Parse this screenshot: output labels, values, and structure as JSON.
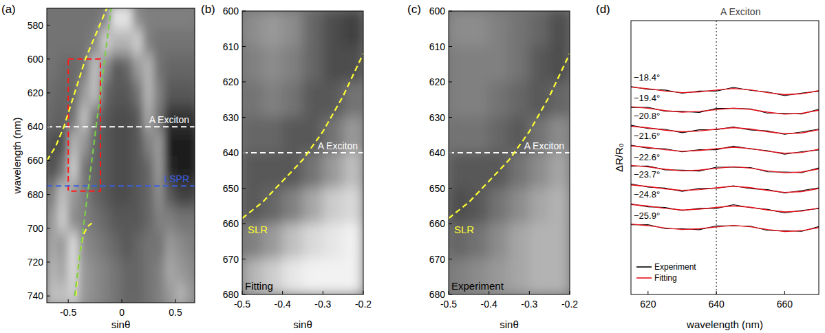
{
  "chart_data": [
    {
      "type": "heatmap",
      "panel": "(a)",
      "x_label": "sinθ",
      "y_label": "wavelength (nm)",
      "xlim": [
        -0.7,
        0.68
      ],
      "ylim": [
        744,
        570
      ],
      "xticks": [
        -0.5,
        0,
        0.5
      ],
      "yticks": [
        580,
        600,
        620,
        640,
        660,
        680,
        700,
        720,
        740
      ],
      "heatmap": {
        "x": [
          -0.65,
          -0.55,
          -0.45,
          -0.35,
          -0.25,
          -0.15,
          -0.05,
          0.05,
          0.15,
          0.25,
          0.35,
          0.45,
          0.55,
          0.65
        ],
        "y": [
          575,
          590,
          605,
          620,
          635,
          650,
          665,
          680,
          695,
          710,
          725,
          740
        ],
        "z": [
          [
            0.45,
            0.45,
            0.45,
            0.45,
            0.45,
            0.5,
            0.9,
            0.9,
            0.55,
            0.5,
            0.5,
            0.5,
            0.5,
            0.5
          ],
          [
            0.45,
            0.45,
            0.45,
            0.45,
            0.5,
            0.8,
            0.7,
            0.7,
            0.8,
            0.5,
            0.45,
            0.45,
            0.45,
            0.45
          ],
          [
            0.45,
            0.42,
            0.42,
            0.45,
            0.75,
            0.55,
            0.35,
            0.4,
            0.6,
            0.7,
            0.45,
            0.4,
            0.4,
            0.4
          ],
          [
            0.42,
            0.4,
            0.4,
            0.6,
            0.75,
            0.4,
            0.35,
            0.35,
            0.45,
            0.7,
            0.5,
            0.35,
            0.35,
            0.35
          ],
          [
            0.4,
            0.38,
            0.45,
            0.75,
            0.45,
            0.35,
            0.3,
            0.3,
            0.35,
            0.65,
            0.45,
            0.2,
            0.2,
            0.2
          ],
          [
            0.3,
            0.3,
            0.7,
            0.6,
            0.4,
            0.35,
            0.3,
            0.3,
            0.35,
            0.5,
            0.6,
            0.12,
            0.1,
            0.1
          ],
          [
            0.3,
            0.45,
            0.8,
            0.45,
            0.4,
            0.35,
            0.3,
            0.3,
            0.35,
            0.4,
            0.6,
            0.15,
            0.1,
            0.1
          ],
          [
            0.5,
            0.75,
            0.6,
            0.5,
            0.4,
            0.35,
            0.3,
            0.3,
            0.35,
            0.4,
            0.55,
            0.35,
            0.25,
            0.25
          ],
          [
            0.6,
            0.8,
            0.55,
            0.5,
            0.45,
            0.4,
            0.35,
            0.35,
            0.35,
            0.4,
            0.5,
            0.5,
            0.45,
            0.45
          ],
          [
            0.65,
            0.6,
            0.85,
            0.55,
            0.5,
            0.45,
            0.4,
            0.35,
            0.4,
            0.45,
            0.45,
            0.6,
            0.55,
            0.5
          ],
          [
            0.7,
            0.65,
            0.85,
            0.6,
            0.55,
            0.5,
            0.45,
            0.4,
            0.4,
            0.45,
            0.5,
            0.65,
            0.6,
            0.55
          ],
          [
            0.75,
            0.75,
            0.8,
            0.6,
            0.55,
            0.5,
            0.45,
            0.4,
            0.4,
            0.45,
            0.5,
            0.6,
            0.7,
            0.6
          ]
        ]
      },
      "reference_lines": [
        {
          "label": "A Exciton",
          "value": 640,
          "color": "#ffffff",
          "line_style": "dashed"
        },
        {
          "label": "LSPR",
          "value": 675,
          "color": "#3a5fe0",
          "line_style": "dashed"
        }
      ],
      "region": {
        "x": [
          -0.5,
          -0.2
        ],
        "y": [
          600,
          678
        ],
        "color": "#ff1a1a",
        "line_style": "dashed"
      },
      "series": [
        {
          "color": "#ffff33",
          "line_style": "dashed",
          "x": [
            -0.7,
            -0.62,
            -0.54,
            -0.44,
            -0.34,
            -0.24,
            -0.14
          ],
          "values": [
            660,
            652,
            640,
            620,
            600,
            585,
            570
          ]
        },
        {
          "color": "#ffff33",
          "line_style": "dashed",
          "x": [
            -0.43,
            -0.4,
            -0.36,
            -0.32,
            -0.28
          ],
          "values": [
            740,
            718,
            704,
            699,
            697
          ]
        },
        {
          "color": "#7ccc4a",
          "line_style": "dashed",
          "x": [
            -0.44,
            -0.1
          ],
          "values": [
            740,
            570
          ]
        }
      ]
    },
    {
      "type": "heatmap",
      "panel": "(b)",
      "x_label": "sinθ",
      "annotation": "Fitting",
      "xlim": [
        -0.5,
        -0.2
      ],
      "ylim": [
        680,
        600
      ],
      "xticks": [
        -0.5,
        -0.4,
        -0.3,
        -0.2
      ],
      "yticks": [
        600,
        610,
        620,
        630,
        640,
        650,
        660,
        670,
        680
      ],
      "heatmap": {
        "x": [
          -0.475,
          -0.425,
          -0.375,
          -0.325,
          -0.275,
          -0.225
        ],
        "y": [
          605,
          615,
          625,
          635,
          645,
          655,
          665,
          675
        ],
        "z": [
          [
            0.55,
            0.6,
            0.55,
            0.4,
            0.3,
            0.25
          ],
          [
            0.5,
            0.55,
            0.5,
            0.4,
            0.3,
            0.3
          ],
          [
            0.45,
            0.5,
            0.45,
            0.35,
            0.35,
            0.45
          ],
          [
            0.4,
            0.4,
            0.35,
            0.35,
            0.45,
            0.6
          ],
          [
            0.35,
            0.35,
            0.35,
            0.45,
            0.6,
            0.75
          ],
          [
            0.35,
            0.4,
            0.5,
            0.65,
            0.8,
            0.85
          ],
          [
            0.5,
            0.6,
            0.75,
            0.85,
            0.9,
            0.95
          ],
          [
            0.7,
            0.8,
            0.9,
            0.95,
            0.95,
            0.95
          ]
        ]
      },
      "reference_lines": [
        {
          "label": "A Exciton",
          "value": 640,
          "color": "#ffffff",
          "line_style": "dashed"
        }
      ],
      "series": [
        {
          "name": "SLR",
          "color": "#ffff33",
          "line_style": "dashed",
          "x": [
            -0.5,
            -0.45,
            -0.4,
            -0.35,
            -0.3,
            -0.25,
            -0.2
          ],
          "values": [
            658.5,
            654,
            648,
            642,
            634,
            624,
            612
          ]
        }
      ]
    },
    {
      "type": "heatmap",
      "panel": "(c)",
      "x_label": "sinθ",
      "annotation": "Experiment",
      "xlim": [
        -0.5,
        -0.2
      ],
      "ylim": [
        680,
        600
      ],
      "xticks": [
        -0.5,
        -0.4,
        -0.3,
        -0.2
      ],
      "yticks": [
        600,
        610,
        620,
        630,
        640,
        650,
        660,
        670,
        680
      ],
      "heatmap": {
        "x": [
          -0.475,
          -0.425,
          -0.375,
          -0.325,
          -0.275,
          -0.225
        ],
        "y": [
          605,
          615,
          625,
          635,
          645,
          655,
          665,
          675
        ],
        "z": [
          [
            0.55,
            0.55,
            0.5,
            0.45,
            0.4,
            0.3
          ],
          [
            0.5,
            0.5,
            0.5,
            0.45,
            0.35,
            0.3
          ],
          [
            0.5,
            0.5,
            0.45,
            0.4,
            0.35,
            0.4
          ],
          [
            0.45,
            0.45,
            0.4,
            0.35,
            0.45,
            0.55
          ],
          [
            0.35,
            0.35,
            0.35,
            0.45,
            0.55,
            0.65
          ],
          [
            0.3,
            0.35,
            0.45,
            0.55,
            0.65,
            0.7
          ],
          [
            0.4,
            0.45,
            0.55,
            0.65,
            0.7,
            0.7
          ],
          [
            0.5,
            0.55,
            0.6,
            0.65,
            0.7,
            0.7
          ]
        ]
      },
      "reference_lines": [
        {
          "label": "A Exciton",
          "value": 640,
          "color": "#ffffff",
          "line_style": "dashed"
        }
      ],
      "series": [
        {
          "name": "SLR",
          "color": "#ffff33",
          "line_style": "dashed",
          "x": [
            -0.5,
            -0.45,
            -0.4,
            -0.35,
            -0.3,
            -0.25,
            -0.2
          ],
          "values": [
            658.5,
            654,
            648,
            642,
            634,
            624,
            612
          ]
        }
      ]
    },
    {
      "type": "line",
      "panel": "(d)",
      "x_label": "wavelength (nm)",
      "y_label": "ΔR/R₀",
      "tick_labels": "x",
      "xlim": [
        615,
        670
      ],
      "ylim": [
        0,
        14
      ],
      "xticks": [
        620,
        640,
        660
      ],
      "legend": "lower left",
      "x": [
        615,
        620,
        625,
        630,
        635,
        640,
        645,
        650,
        655,
        660,
        665,
        670
      ],
      "reference_lines": [
        {
          "label": "A Exciton",
          "value": 640,
          "color": "#444444",
          "line_style": "dotted"
        }
      ],
      "series": [
        {
          "name": "Experiment",
          "color": "#000000"
        },
        {
          "name": "Fitting",
          "color": "#e8101a"
        }
      ],
      "curves": [
        {
          "label": "−18.4°",
          "experiment": [
            10.63,
            10.48,
            10.45,
            10.29,
            10.4,
            10.4,
            10.59,
            10.44,
            10.35,
            10.17,
            10.3,
            10.39
          ],
          "fitting": [
            10.6,
            10.52,
            10.4,
            10.32,
            10.36,
            10.45,
            10.53,
            10.46,
            10.32,
            10.22,
            10.26,
            10.42
          ]
        },
        {
          "label": "−19.4°",
          "experiment": [
            9.56,
            9.57,
            9.37,
            9.36,
            9.31,
            9.51,
            9.51,
            9.49,
            9.27,
            9.26,
            9.23,
            9.47
          ],
          "fitting": [
            9.6,
            9.52,
            9.4,
            9.32,
            9.36,
            9.45,
            9.53,
            9.46,
            9.32,
            9.22,
            9.26,
            9.42
          ]
        },
        {
          "label": "−20.8°",
          "experiment": [
            8.65,
            8.49,
            8.44,
            8.27,
            8.42,
            8.43,
            8.56,
            8.41,
            8.36,
            8.19,
            8.31,
            8.45
          ],
          "fitting": [
            8.6,
            8.52,
            8.4,
            8.32,
            8.36,
            8.45,
            8.53,
            8.46,
            8.32,
            8.22,
            8.26,
            8.42
          ]
        },
        {
          "label": "−21.6°",
          "experiment": [
            7.63,
            7.48,
            7.45,
            7.29,
            7.4,
            7.4,
            7.59,
            7.44,
            7.35,
            7.17,
            7.3,
            7.39
          ],
          "fitting": [
            7.6,
            7.52,
            7.4,
            7.32,
            7.36,
            7.45,
            7.53,
            7.46,
            7.32,
            7.22,
            7.26,
            7.42
          ]
        },
        {
          "label": "−22.6°",
          "experiment": [
            6.56,
            6.57,
            6.37,
            6.36,
            6.31,
            6.51,
            6.51,
            6.49,
            6.27,
            6.26,
            6.23,
            6.47
          ],
          "fitting": [
            6.6,
            6.52,
            6.4,
            6.32,
            6.36,
            6.45,
            6.53,
            6.46,
            6.32,
            6.22,
            6.26,
            6.42
          ]
        },
        {
          "label": "−23.7°",
          "experiment": [
            5.65,
            5.49,
            5.44,
            5.27,
            5.42,
            5.43,
            5.56,
            5.41,
            5.36,
            5.19,
            5.31,
            5.45
          ],
          "fitting": [
            5.6,
            5.52,
            5.4,
            5.32,
            5.36,
            5.45,
            5.53,
            5.46,
            5.32,
            5.22,
            5.26,
            5.42
          ]
        },
        {
          "label": "−24.8°",
          "experiment": [
            4.63,
            4.48,
            4.45,
            4.29,
            4.4,
            4.4,
            4.59,
            4.44,
            4.35,
            4.17,
            4.3,
            4.39
          ],
          "fitting": [
            4.6,
            4.52,
            4.4,
            4.32,
            4.36,
            4.45,
            4.53,
            4.46,
            4.32,
            4.22,
            4.26,
            4.42
          ]
        },
        {
          "label": "−25.9°",
          "experiment": [
            3.56,
            3.57,
            3.37,
            3.36,
            3.31,
            3.51,
            3.51,
            3.49,
            3.27,
            3.26,
            3.23,
            3.47
          ],
          "fitting": [
            3.6,
            3.52,
            3.4,
            3.32,
            3.36,
            3.45,
            3.53,
            3.46,
            3.32,
            3.22,
            3.26,
            3.42
          ]
        }
      ]
    }
  ]
}
